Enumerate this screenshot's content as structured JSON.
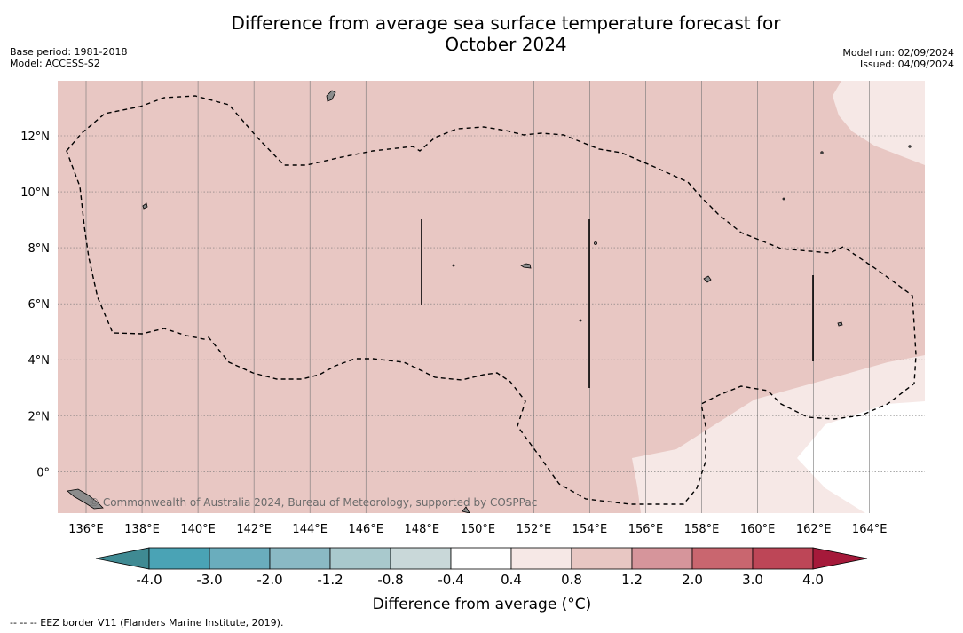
{
  "header": {
    "title_line1": "Difference from average sea surface temperature forecast for",
    "title_line2": "October 2024",
    "base_period": "Base period: 1981-2018",
    "model": "Model: ACCESS-S2",
    "model_run": "Model run: 02/09/2024",
    "issued": "Issued: 04/09/2024"
  },
  "map": {
    "lon_ticks": [
      "136°E",
      "138°E",
      "140°E",
      "142°E",
      "144°E",
      "146°E",
      "148°E",
      "150°E",
      "152°E",
      "154°E",
      "156°E",
      "158°E",
      "160°E",
      "162°E",
      "164°E"
    ],
    "lat_ticks": [
      "12°N",
      "10°N",
      "8°N",
      "6°N",
      "4°N",
      "2°N",
      "0°"
    ],
    "attribution": "© Commonwealth of Australia 2024, Bureau of Meteorology, supported by COSPPac",
    "colors": {
      "anomaly_0_8_to_1_2": "#e8c7c3",
      "anomaly_0_4_to_0_8": "#f6e8e6",
      "anomaly_neg0_4_to_0_4": "#ffffff",
      "eez_border": "#000000",
      "land": "#8c8c8c"
    }
  },
  "legend": {
    "title": "Difference from average (°C)",
    "labels": [
      "-4.0",
      "-3.0",
      "-2.0",
      "-1.2",
      "-0.8",
      "-0.4",
      "0.4",
      "0.8",
      "1.2",
      "2.0",
      "3.0",
      "4.0"
    ],
    "bins": [
      "#4aa3b5",
      "#6aadbd",
      "#8ab9c4",
      "#a9c9cd",
      "#c9d8d9",
      "#ffffff",
      "#f6e8e6",
      "#e8c7c3",
      "#d6959b",
      "#c9666f",
      "#bd4657"
    ],
    "under_color": "#3f8a93",
    "over_color": "#a5193a"
  },
  "footnote": "-- -- -- EEZ border V11 (Flanders Marine Institute, 2019)."
}
